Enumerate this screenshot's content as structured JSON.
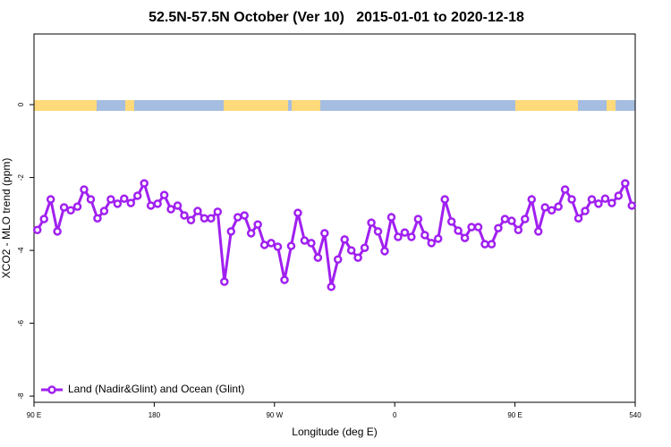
{
  "chart_data": {
    "type": "line",
    "title": "52.5N-57.5N October (Ver 10)   2015-01-01 to 2020-12-18",
    "x_label": "Longitude (deg E)",
    "y_label": "XCO2 - MLO trend (ppm)",
    "xlim": [
      90,
      540
    ],
    "ylim": [
      -8.17,
      1.94
    ],
    "xticks": [
      {
        "value": 90,
        "label": "90 E"
      },
      180,
      {
        "value": 270,
        "label": "90 W"
      },
      {
        "value": 360,
        "label": "0"
      },
      {
        "value": 450,
        "label": "90 E"
      },
      540
    ],
    "yticks": [
      0,
      -2,
      -4,
      -6,
      -8
    ],
    "legend": "lower left",
    "x": [
      92.5,
      97.5,
      102.5,
      107.5,
      112.5,
      117.5,
      122.5,
      127.5,
      132.5,
      137.5,
      142.5,
      147.5,
      152.5,
      157.5,
      162.5,
      167.5,
      172.5,
      177.5,
      182.5,
      187.5,
      192.5,
      197.5,
      202.5,
      207.5,
      212.5,
      217.5,
      222.5,
      227.5,
      232.5,
      237.5,
      242.5,
      247.5,
      252.5,
      257.5,
      262.5,
      267.5,
      272.5,
      277.5,
      282.5,
      287.5,
      292.5,
      297.5,
      302.5,
      307.5,
      312.5,
      317.5,
      322.5,
      327.5,
      332.5,
      337.5,
      342.5,
      347.5,
      352.5,
      357.5,
      362.5,
      367.5,
      372.5,
      377.5,
      382.5,
      387.5,
      392.5,
      397.5,
      402.5,
      407.5,
      412.5,
      417.5,
      422.5,
      427.5,
      432.5,
      437.5,
      442.5,
      447.5,
      452.5,
      457.5,
      462.5,
      467.5,
      472.5,
      477.5,
      482.5,
      487.5,
      492.5,
      497.5,
      502.5,
      507.5,
      512.5,
      517.5,
      522.5,
      527.5,
      532.5,
      537.5
    ],
    "series": [
      {
        "name": "Land (Nadir&Glint) and Ocean (Glint)",
        "color": "#a020f0",
        "values": [
          -3.44,
          -3.14,
          -2.6,
          -3.48,
          -2.82,
          -2.9,
          -2.8,
          -2.33,
          -2.6,
          -3.12,
          -2.92,
          -2.6,
          -2.72,
          -2.58,
          -2.7,
          -2.5,
          -2.16,
          -2.77,
          -2.72,
          -2.48,
          -2.87,
          -2.77,
          -3.04,
          -3.17,
          -2.92,
          -3.12,
          -3.12,
          -2.94,
          -4.86,
          -3.48,
          -3.09,
          -3.04,
          -3.53,
          -3.29,
          -3.85,
          -3.8,
          -3.9,
          -4.81,
          -3.88,
          -2.97,
          -3.73,
          -3.8,
          -4.2,
          -3.53,
          -5.0,
          -4.25,
          -3.7,
          -4.0,
          -4.2,
          -3.93,
          -3.24,
          -3.48,
          -4.02,
          -3.09,
          -3.63,
          -3.51,
          -3.63,
          -3.14,
          -3.58,
          -3.8,
          -3.68,
          -2.6,
          -3.21,
          -3.46,
          -3.66,
          -3.36,
          -3.36,
          -3.83,
          -3.83,
          -3.39,
          -3.14,
          -3.19,
          -3.44,
          -3.14,
          -2.6,
          -3.48,
          -2.82,
          -2.9,
          -2.8,
          -2.33,
          -2.6,
          -3.12,
          -2.92,
          -2.6,
          -2.72,
          -2.58,
          -2.7,
          -2.5,
          -2.16,
          -2.77
        ]
      }
    ]
  }
}
